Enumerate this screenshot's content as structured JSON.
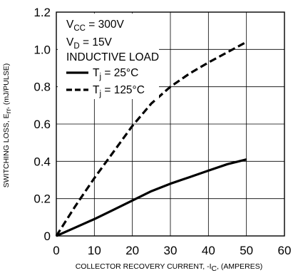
{
  "chart_data": {
    "type": "line",
    "xlabel": {
      "main": "COLLECTOR RECOVERY CURRENT, -I",
      "sub": "C",
      "tail": ", (AMPERES)"
    },
    "ylabel": {
      "main": "SWITCHING LOSS, E",
      "sub": "rr",
      "tail": ", (mJ/PULSE)"
    },
    "xlim": [
      0,
      60
    ],
    "ylim": [
      0,
      1.2
    ],
    "xticks": [
      "0",
      "10",
      "20",
      "30",
      "40",
      "50",
      "60"
    ],
    "yticks": [
      "0",
      "0.2",
      "0.4",
      "0.6",
      "0.8",
      "1.0",
      "1.2"
    ],
    "grid": true,
    "conditions": [
      {
        "main": "V",
        "sub": "CC",
        "tail": " = 300V"
      },
      {
        "main": "V",
        "sub": "D",
        "tail": " = 15V"
      },
      {
        "main": "INDUCTIVE LOAD",
        "sub": "",
        "tail": ""
      }
    ],
    "series": [
      {
        "name": "Tj = 25°C",
        "legend": {
          "main": "T",
          "sub": "j",
          "tail": " = 25°C"
        },
        "style": "solid",
        "x": [
          0,
          5,
          10,
          15,
          20,
          25,
          30,
          35,
          40,
          45,
          50
        ],
        "y": [
          0.0,
          0.045,
          0.09,
          0.14,
          0.19,
          0.24,
          0.28,
          0.315,
          0.35,
          0.385,
          0.41
        ]
      },
      {
        "name": "Tj = 125°C",
        "legend": {
          "main": "T",
          "sub": "j",
          "tail": " = 125°C"
        },
        "style": "dashed",
        "x": [
          0,
          5,
          10,
          15,
          20,
          25,
          30,
          35,
          40,
          45,
          50
        ],
        "y": [
          0.0,
          0.16,
          0.31,
          0.45,
          0.59,
          0.71,
          0.8,
          0.87,
          0.93,
          0.985,
          1.04
        ]
      }
    ]
  }
}
